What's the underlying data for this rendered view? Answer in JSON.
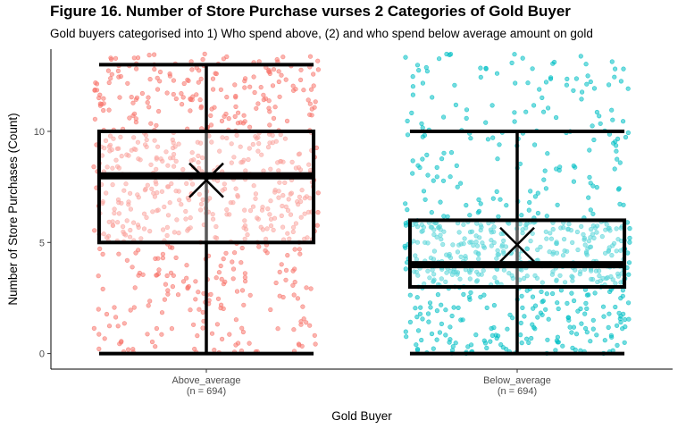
{
  "title": "Figure 16. Number of Store Purchase vurses 2 Categories of Gold Buyer",
  "subtitle": "Gold buyers categorised into 1) Who spend above, (2) and who spend below average amount on gold",
  "chart_data": {
    "type": "boxplot",
    "xlabel": "Gold Buyer",
    "ylabel": "Number of Store Purchases (Count)",
    "ylim": [
      -0.7,
      13.7
    ],
    "yticks": [
      0,
      5,
      10
    ],
    "grid": false,
    "categories": [
      {
        "name": "Above_average",
        "n_label": "(n = 694)",
        "color": "#F8766D",
        "min": 0,
        "q1": 5,
        "median": 8,
        "q3": 10,
        "max": 13,
        "mean": 7.8,
        "points_range": [
          0,
          13.5
        ]
      },
      {
        "name": "Below_average",
        "n_label": "(n = 694)",
        "color": "#00BFC4",
        "min": 0,
        "q1": 3,
        "median": 4,
        "q3": 6,
        "max": 10,
        "mean": 4.9,
        "points_range": [
          0,
          13.5
        ]
      }
    ]
  }
}
